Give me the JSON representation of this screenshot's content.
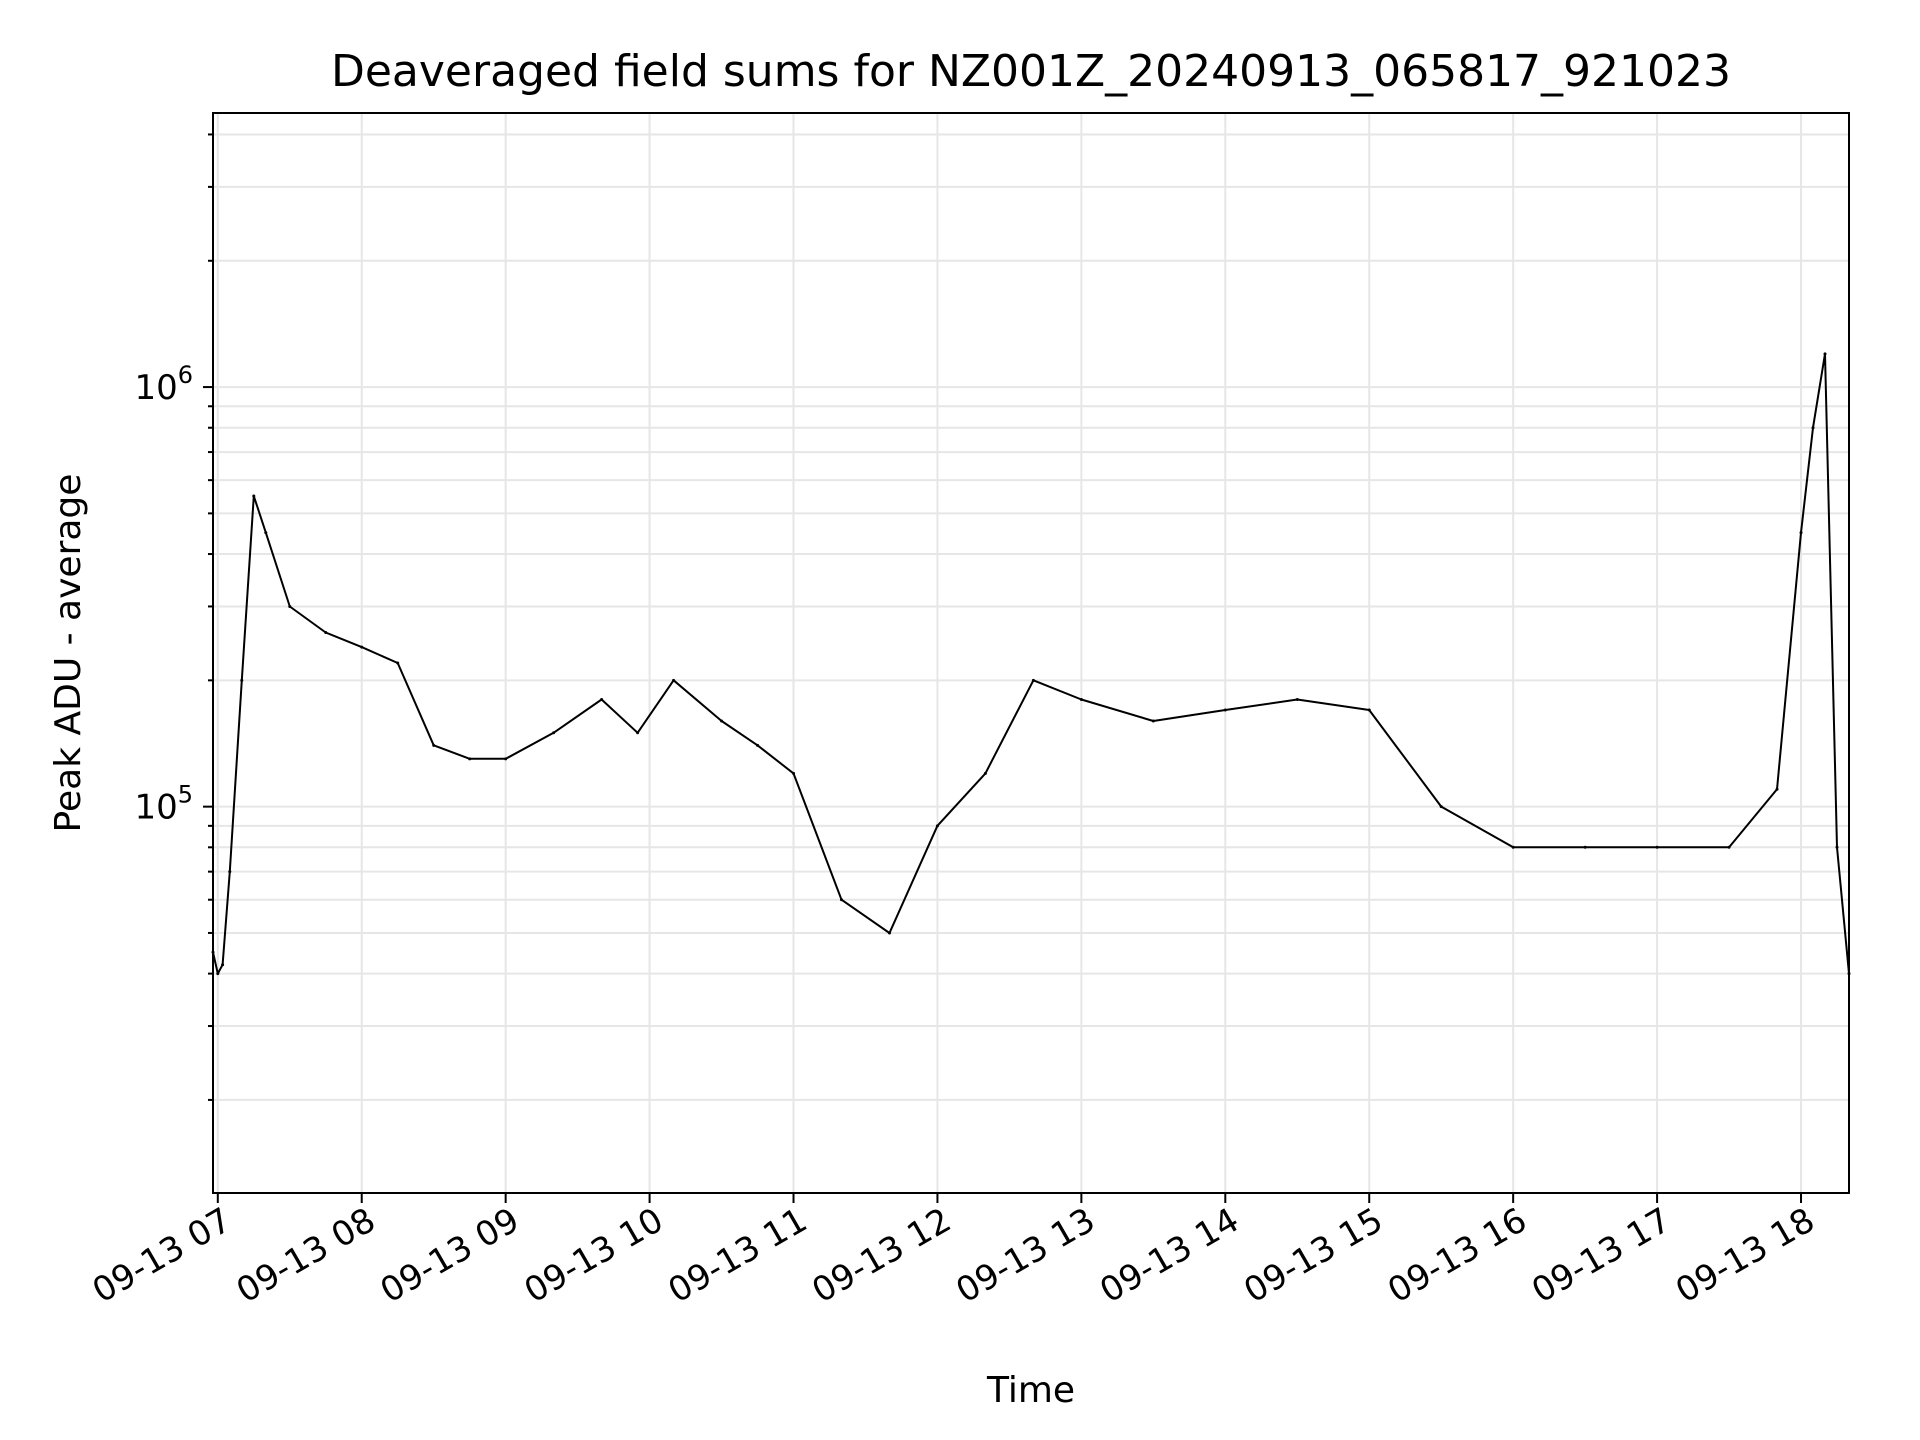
{
  "chart_data": {
    "type": "line",
    "title": "Deaveraged field sums for NZ001Z_20240913_065817_921023",
    "xlabel": "Time",
    "ylabel": "Peak ADU - average",
    "yscale": "log",
    "ylim": [
      12000,
      4500000
    ],
    "xlim": [
      "2024-09-13 06:58",
      "2024-09-13 18:20"
    ],
    "grid": true,
    "line_color": "#000000",
    "grid_color": "#e6e6e6",
    "x_ticks": [
      "09-13 07",
      "09-13 08",
      "09-13 09",
      "09-13 10",
      "09-13 11",
      "09-13 12",
      "09-13 13",
      "09-13 14",
      "09-13 15",
      "09-13 16",
      "09-13 17",
      "09-13 18"
    ],
    "y_ticks": [
      {
        "base": "10",
        "exp": "5",
        "value": 100000
      },
      {
        "base": "10",
        "exp": "6",
        "value": 1000000
      }
    ],
    "series": [
      {
        "x": [
          "2024-09-13 06:58",
          "2024-09-13 07:00",
          "2024-09-13 07:02",
          "2024-09-13 07:05",
          "2024-09-13 07:10",
          "2024-09-13 07:15",
          "2024-09-13 07:20",
          "2024-09-13 07:30",
          "2024-09-13 07:45",
          "2024-09-13 08:00",
          "2024-09-13 08:15",
          "2024-09-13 08:30",
          "2024-09-13 08:45",
          "2024-09-13 09:00",
          "2024-09-13 09:20",
          "2024-09-13 09:40",
          "2024-09-13 09:55",
          "2024-09-13 10:10",
          "2024-09-13 10:30",
          "2024-09-13 10:45",
          "2024-09-13 11:00",
          "2024-09-13 11:20",
          "2024-09-13 11:40",
          "2024-09-13 12:00",
          "2024-09-13 12:20",
          "2024-09-13 12:40",
          "2024-09-13 13:00",
          "2024-09-13 13:30",
          "2024-09-13 14:00",
          "2024-09-13 14:30",
          "2024-09-13 15:00",
          "2024-09-13 15:30",
          "2024-09-13 16:00",
          "2024-09-13 16:30",
          "2024-09-13 17:00",
          "2024-09-13 17:30",
          "2024-09-13 17:50",
          "2024-09-13 18:00",
          "2024-09-13 18:05",
          "2024-09-13 18:10",
          "2024-09-13 18:15",
          "2024-09-13 18:20"
        ],
        "y": [
          45000,
          40000,
          42000,
          70000,
          200000,
          550000,
          450000,
          300000,
          260000,
          240000,
          220000,
          140000,
          130000,
          130000,
          150000,
          180000,
          150000,
          200000,
          160000,
          140000,
          120000,
          60000,
          50000,
          90000,
          120000,
          200000,
          180000,
          160000,
          170000,
          180000,
          170000,
          100000,
          80000,
          80000,
          80000,
          80000,
          110000,
          450000,
          800000,
          1200000,
          80000,
          40000
        ]
      }
    ]
  }
}
